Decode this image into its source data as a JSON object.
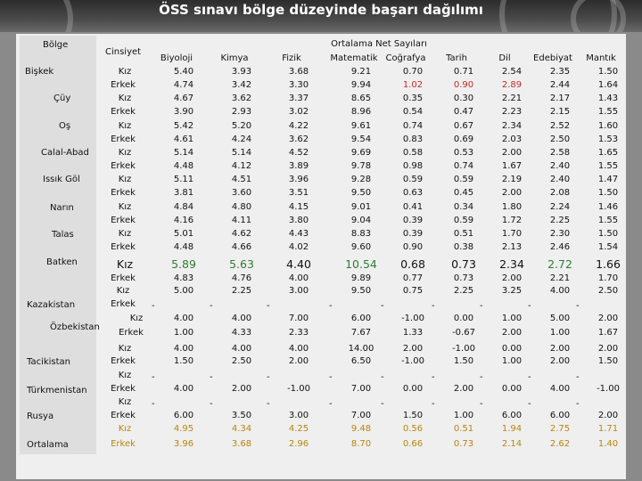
{
  "title": "ÖSS sınavı bölge düzeyinde başarı dağılımı",
  "header": {
    "bolge": "Bölge",
    "cinsiyet": "Cinsiyet",
    "group": "Ortalama Net Sayıları",
    "subjects": [
      "Biyoloji",
      "Kimya",
      "Fizik",
      "Matematik",
      "Coğrafya",
      "Tarih",
      "Dil",
      "Edebiyat",
      "Mantık"
    ]
  },
  "regions": [
    {
      "name": "Bişkek"
    },
    {
      "name": "Çüy"
    },
    {
      "name": "Oş"
    },
    {
      "name": "Calal-Abad"
    },
    {
      "name": "Issık Göl"
    },
    {
      "name": "Narın"
    },
    {
      "name": "Talas"
    },
    {
      "name": "Batken"
    },
    {
      "name": "Kazakistan"
    },
    {
      "name": "Özbekistan"
    },
    {
      "name": "Tacikistan"
    },
    {
      "name": "Türkmenistan"
    },
    {
      "name": "Rusya"
    },
    {
      "name": "Ortalama"
    }
  ],
  "rows": [
    {
      "g": "Kız",
      "v": [
        "5.40",
        "3.93",
        "3.68",
        "9.21",
        "0.70",
        "0.71",
        "2.54",
        "2.35",
        "1.50"
      ]
    },
    {
      "g": "Erkek",
      "v": [
        "4.74",
        "3.42",
        "3.30",
        "9.94",
        "1.02",
        "0.90",
        "2.89",
        "2.44",
        "1.64"
      ]
    },
    {
      "g": "Kız",
      "v": [
        "4.67",
        "3.62",
        "3.37",
        "8.65",
        "0.35",
        "0.30",
        "2.21",
        "2.17",
        "1.43"
      ]
    },
    {
      "g": "Erkek",
      "v": [
        "3.90",
        "2.93",
        "3.02",
        "8.96",
        "0.54",
        "0.47",
        "2.23",
        "2.15",
        "1.55"
      ]
    },
    {
      "g": "Kız",
      "v": [
        "5.42",
        "5.20",
        "4.22",
        "9.61",
        "0.74",
        "0.67",
        "2.34",
        "2.52",
        "1.60"
      ]
    },
    {
      "g": "Erkek",
      "v": [
        "4.61",
        "4.24",
        "3.62",
        "9.54",
        "0.83",
        "0.69",
        "2.03",
        "2.50",
        "1.53"
      ]
    },
    {
      "g": "Kız",
      "v": [
        "5.14",
        "5.14",
        "4.52",
        "9.69",
        "0.58",
        "0.53",
        "2.00",
        "2.58",
        "1.65"
      ]
    },
    {
      "g": "Erkek",
      "v": [
        "4.48",
        "4.12",
        "3.89",
        "9.78",
        "0.98",
        "0.74",
        "1.67",
        "2.40",
        "1.55"
      ]
    },
    {
      "g": "Kız",
      "v": [
        "5.11",
        "4.51",
        "3.96",
        "9.28",
        "0.59",
        "0.59",
        "2.19",
        "2.40",
        "1.47"
      ]
    },
    {
      "g": "Erkek",
      "v": [
        "3.81",
        "3.60",
        "3.51",
        "9.50",
        "0.63",
        "0.45",
        "2.00",
        "2.08",
        "1.50"
      ]
    },
    {
      "g": "Kız",
      "v": [
        "4.84",
        "4.80",
        "4.15",
        "9.01",
        "0.41",
        "0.34",
        "1.80",
        "2.24",
        "1.46"
      ]
    },
    {
      "g": "Erkek",
      "v": [
        "4.16",
        "4.11",
        "3.80",
        "9.04",
        "0.39",
        "0.59",
        "1.72",
        "2.25",
        "1.55"
      ]
    },
    {
      "g": "Kız",
      "v": [
        "5.01",
        "4.62",
        "4.43",
        "8.83",
        "0.39",
        "0.51",
        "1.70",
        "2.30",
        "1.50"
      ]
    },
    {
      "g": "Erkek",
      "v": [
        "4.48",
        "4.66",
        "4.02",
        "9.60",
        "0.90",
        "0.38",
        "2.13",
        "2.46",
        "1.54"
      ]
    },
    {
      "g": "Kız",
      "v": [
        "5.89",
        "5.63",
        "4.40",
        "10.54",
        "0.68",
        "0.73",
        "2.34",
        "2.72",
        "1.66"
      ]
    },
    {
      "g": "Erkek",
      "v": [
        "4.83",
        "4.76",
        "4.00",
        "9.89",
        "0.77",
        "0.73",
        "2.00",
        "2.21",
        "1.70"
      ]
    },
    {
      "g": "Kız",
      "v": [
        "5.00",
        "2.25",
        "3.00",
        "9.50",
        "0.75",
        "2.25",
        "3.25",
        "4.00",
        "2.50"
      ]
    },
    {
      "g": "Erkek",
      "v": [
        "-",
        "-",
        "-",
        "-",
        "-",
        "-",
        "-",
        "-",
        "-"
      ]
    },
    {
      "g": "Kız",
      "v": [
        "4.00",
        "4.00",
        "7.00",
        "6.00",
        "-1.00",
        "0.00",
        "1.00",
        "5.00",
        "2.00"
      ]
    },
    {
      "g": "Erkek",
      "v": [
        "1.00",
        "4.33",
        "2.33",
        "7.67",
        "1.33",
        "-0.67",
        "2.00",
        "1.00",
        "1.67"
      ]
    },
    {
      "g": "Kız",
      "v": [
        "4.00",
        "4.00",
        "4.00",
        "14.00",
        "2.00",
        "-1.00",
        "0.00",
        "2.00",
        "2.00"
      ]
    },
    {
      "g": "Erkek",
      "v": [
        "1.50",
        "2.50",
        "2.00",
        "6.50",
        "-1.00",
        "1.50",
        "1.00",
        "2.00",
        "1.50"
      ]
    },
    {
      "g": "Kız",
      "v": [
        "-",
        "-",
        "-",
        "-",
        "-",
        "-",
        "-",
        "-",
        "-"
      ]
    },
    {
      "g": "Erkek",
      "v": [
        "4.00",
        "2.00",
        "-1.00",
        "7.00",
        "0.00",
        "2.00",
        "0.00",
        "4.00",
        "-1.00"
      ]
    },
    {
      "g": "Kız",
      "v": [
        "-",
        "-",
        "-",
        "-",
        "-",
        "-",
        "-",
        "-",
        "-"
      ]
    },
    {
      "g": "Erkek",
      "v": [
        "6.00",
        "3.50",
        "3.00",
        "7.00",
        "1.50",
        "1.00",
        "6.00",
        "6.00",
        "2.00"
      ]
    },
    {
      "g": "Kız",
      "v": [
        "4.95",
        "4.34",
        "4.25",
        "9.48",
        "0.56",
        "0.51",
        "1.94",
        "2.75",
        "1.71"
      ]
    },
    {
      "g": "Erkek",
      "v": [
        "3.96",
        "3.68",
        "2.96",
        "8.70",
        "0.66",
        "0.73",
        "2.14",
        "2.62",
        "1.40"
      ]
    }
  ],
  "colors": {
    "background": "#8a8a8a",
    "panel": "#efefef",
    "title": "#ffffff",
    "highlight_red": "#c62828",
    "highlight_green": "#2e7d32",
    "highlight_orange": "#b8860b",
    "average_row": "#b8860b"
  }
}
